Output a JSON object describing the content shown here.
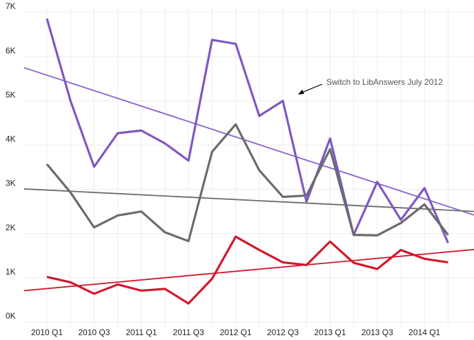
{
  "chart_data": {
    "type": "line",
    "categories": [
      "2010 Q1",
      null,
      "2010 Q3",
      null,
      "2011 Q1",
      null,
      "2011 Q3",
      null,
      "2012 Q1",
      null,
      "2012 Q3",
      null,
      "2013 Q1",
      null,
      "2013 Q3",
      null,
      "2014 Q1",
      null
    ],
    "series": [
      {
        "color": "#7e57c2",
        "values": [
          6860,
          5000,
          3510,
          4270,
          4330,
          4040,
          3650,
          6380,
          6290,
          4660,
          5000,
          2720,
          4150,
          1970,
          3170,
          2310,
          3030,
          1790
        ]
      },
      {
        "color": "#6b6b6b",
        "values": [
          3570,
          2930,
          2140,
          2410,
          2500,
          2030,
          1830,
          3850,
          4470,
          3430,
          2830,
          2860,
          3910,
          1970,
          1960,
          2240,
          2660,
          1970
        ]
      },
      {
        "color": "#d0192e",
        "values": [
          1020,
          900,
          640,
          850,
          710,
          750,
          420,
          980,
          1930,
          1630,
          1350,
          1290,
          1820,
          1340,
          1200,
          1630,
          1430,
          1350
        ]
      }
    ],
    "trendlines": [
      {
        "color": "#8a5fd0",
        "values": [
          5750,
          2420
        ]
      },
      {
        "color": "#6b6b6b",
        "values": [
          3010,
          2500
        ]
      },
      {
        "color": "#d0192e",
        "values": [
          710,
          1640
        ]
      }
    ],
    "ylim": [
      0,
      7000
    ],
    "yticks": [
      {
        "value": 0,
        "label": "0K"
      },
      {
        "value": 1000,
        "label": "1K"
      },
      {
        "value": 2000,
        "label": "2K"
      },
      {
        "value": 3000,
        "label": "3K"
      },
      {
        "value": 4000,
        "label": "4K"
      },
      {
        "value": 5000,
        "label": "5K"
      },
      {
        "value": 6000,
        "label": "6K"
      },
      {
        "value": 7000,
        "label": "7K"
      }
    ],
    "grid": true,
    "annotation": "Switch to LibAnswers July 2012"
  }
}
